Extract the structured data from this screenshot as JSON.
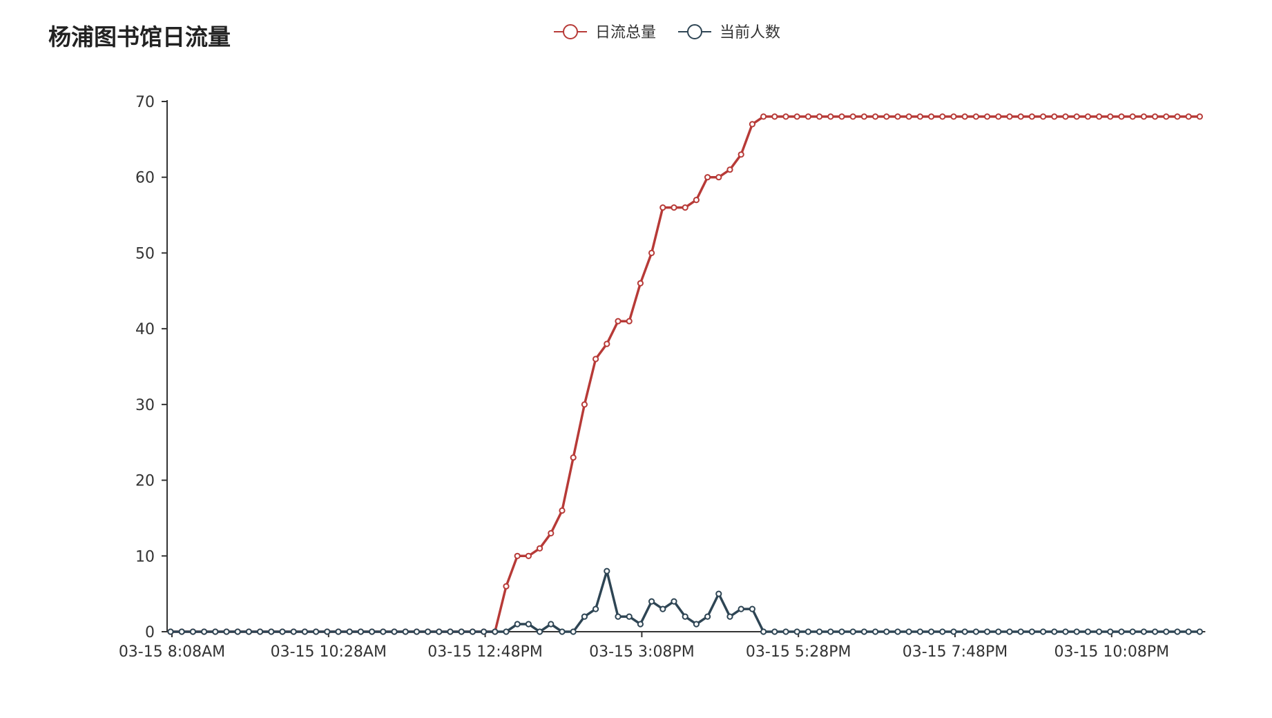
{
  "chart_data": {
    "type": "line",
    "title": "杨浦图书馆日流量",
    "xlabel": "",
    "ylabel": "",
    "ylim": [
      0,
      70
    ],
    "y_ticks": [
      0,
      10,
      20,
      30,
      40,
      50,
      60,
      70
    ],
    "x_tick_labels": [
      "03-15 8:08AM",
      "03-15 10:28AM",
      "03-15 12:48PM",
      "03-15 3:08PM",
      "03-15 5:28PM",
      "03-15 7:48PM",
      "03-15 10:08PM"
    ],
    "x_tick_indices": [
      0,
      14,
      28,
      42,
      56,
      70,
      84
    ],
    "x_interval_minutes": 10,
    "legend_position": "top-center",
    "grid": false,
    "series": [
      {
        "name": "日流总量",
        "color": "#b73a37",
        "values": [
          0,
          0,
          0,
          0,
          0,
          0,
          0,
          0,
          0,
          0,
          0,
          0,
          0,
          0,
          0,
          0,
          0,
          0,
          0,
          0,
          0,
          0,
          0,
          0,
          0,
          0,
          0,
          0,
          0,
          0,
          6,
          10,
          10,
          11,
          13,
          16,
          23,
          30,
          36,
          38,
          41,
          41,
          46,
          50,
          56,
          56,
          56,
          57,
          60,
          60,
          61,
          63,
          67,
          68,
          68,
          68,
          68,
          68,
          68,
          68,
          68,
          68,
          68,
          68,
          68,
          68,
          68,
          68,
          68,
          68,
          68,
          68,
          68,
          68,
          68,
          68,
          68,
          68,
          68,
          68,
          68,
          68,
          68,
          68,
          68,
          68,
          68,
          68,
          68,
          68,
          68,
          68,
          68
        ]
      },
      {
        "name": "当前人数",
        "color": "#2e4554",
        "values": [
          0,
          0,
          0,
          0,
          0,
          0,
          0,
          0,
          0,
          0,
          0,
          0,
          0,
          0,
          0,
          0,
          0,
          0,
          0,
          0,
          0,
          0,
          0,
          0,
          0,
          0,
          0,
          0,
          0,
          0,
          0,
          1,
          1,
          0,
          1,
          0,
          0,
          2,
          3,
          8,
          2,
          2,
          1,
          4,
          3,
          4,
          2,
          1,
          2,
          5,
          2,
          3,
          3,
          0,
          0,
          0,
          0,
          0,
          0,
          0,
          0,
          0,
          0,
          0,
          0,
          0,
          0,
          0,
          0,
          0,
          0,
          0,
          0,
          0,
          0,
          0,
          0,
          0,
          0,
          0,
          0,
          0,
          0,
          0,
          0,
          0,
          0,
          0,
          0,
          0,
          0,
          0,
          0
        ]
      }
    ]
  }
}
